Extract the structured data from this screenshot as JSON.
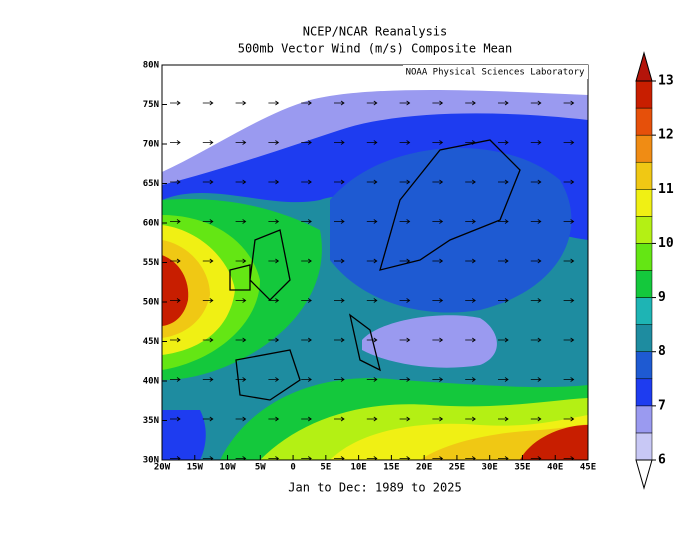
{
  "header": {
    "title": "NCEP/NCAR Reanalysis",
    "subtitle": "500mb Vector Wind (m/s) Composite Mean"
  },
  "map": {
    "credit": "NOAA Physical Sciences Laboratory",
    "xticks": [
      "20W",
      "15W",
      "10W",
      "5W",
      "0",
      "5E",
      "10E",
      "15E",
      "20E",
      "25E",
      "30E",
      "35E",
      "40E",
      "45E"
    ],
    "yticks": [
      "30N",
      "35N",
      "40N",
      "45N",
      "50N",
      "55N",
      "60N",
      "65N",
      "70N",
      "75N",
      "80N"
    ]
  },
  "colorbar": {
    "ticks": [
      6,
      7,
      8,
      9,
      10,
      11,
      12,
      13
    ],
    "colors": [
      "#c8c8f5",
      "#9a9af0",
      "#1e3cf0",
      "#1e5ad2",
      "#1e8ca0",
      "#1eb4b4",
      "#14c83c",
      "#64e614",
      "#b4f014",
      "#f0f014",
      "#f0c814",
      "#f08c14",
      "#e6500a",
      "#c81e00"
    ],
    "below": "#ffffff",
    "above": "#b4140a"
  },
  "footer": {
    "period": "Jan to Dec: 1989 to 2025"
  }
}
